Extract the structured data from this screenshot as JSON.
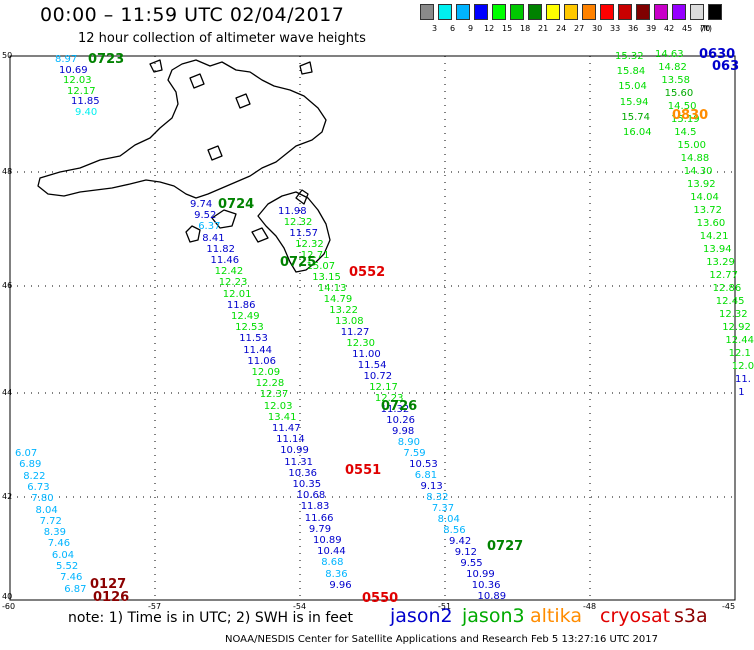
{
  "header": {
    "title": "00:00 – 11:59 UTC 02/04/2017",
    "subtitle": "12 hour collection of altimeter wave heights"
  },
  "legend": {
    "unit": "(ft)",
    "colors": [
      "#8a8a8a",
      "#00f0f0",
      "#00b4ff",
      "#0000ff",
      "#00ff00",
      "#00c800",
      "#008200",
      "#ffff00",
      "#ffc800",
      "#ff8200",
      "#ff0000",
      "#c80000",
      "#800000",
      "#c800c8",
      "#9600ff",
      "#dcdcdc",
      "#000000"
    ],
    "labels": [
      "3",
      "6",
      "9",
      "12",
      "15",
      "18",
      "21",
      "24",
      "27",
      "30",
      "33",
      "36",
      "39",
      "42",
      "45",
      "70"
    ]
  },
  "axes": {
    "lat_labels": [
      "50",
      "48",
      "46",
      "44",
      "42",
      "40"
    ],
    "lon_labels": [
      "-60",
      "-57",
      "-54",
      "-51",
      "-48",
      "-45"
    ]
  },
  "satellites": [
    {
      "name": "jason2",
      "color": "#0000cc"
    },
    {
      "name": "jason3",
      "color": "#00aa00"
    },
    {
      "name": "altika",
      "color": "#ff8c00"
    },
    {
      "name": "cryosat",
      "color": "#e00000"
    },
    {
      "name": "s3a",
      "color": "#8b0000"
    }
  ],
  "footer": {
    "note": "note:  1) Time is in UTC;  2) SWH is in feet",
    "credit": "NOAA/NESDIS Center for Satellite Applications and Research    Feb  5 13:27:16 UTC 2017"
  },
  "time_labels": [
    {
      "text": "0723",
      "color": "#008200"
    },
    {
      "text": "0724",
      "color": "#008200"
    },
    {
      "text": "0725",
      "color": "#008200"
    },
    {
      "text": "0552",
      "color": "#e00000"
    },
    {
      "text": "0726",
      "color": "#008200"
    },
    {
      "text": "0551",
      "color": "#e00000"
    },
    {
      "text": "0727",
      "color": "#008200"
    },
    {
      "text": "0550",
      "color": "#e00000"
    },
    {
      "text": "0127",
      "color": "#8b0000"
    },
    {
      "text": "0126",
      "color": "#8b0000"
    },
    {
      "text": "0630",
      "color": "#0000cc"
    },
    {
      "text": "063",
      "color": "#0000cc"
    },
    {
      "text": "0830",
      "color": "#ff8c00"
    }
  ],
  "tracks": [
    {
      "name": "track-a",
      "values": [
        "8.97",
        "10.69",
        "12.03",
        "12.17",
        "11.85",
        "9.40"
      ],
      "colors": [
        "#00b4ff",
        "#0000cc",
        "#00dd00",
        "#00dd00",
        "#0000cc",
        "#00f0f0"
      ]
    },
    {
      "name": "track-b",
      "values": [
        "9.74",
        "9.52",
        "6.37",
        "8.41",
        "11.82",
        "11.46",
        "12.42",
        "12.23",
        "12.01",
        "11.86",
        "12.49",
        "12.53",
        "11.53",
        "11.44",
        "11.06",
        "12.09",
        "12.28",
        "12.37",
        "12.03",
        "13.41",
        "11.47",
        "11.14",
        "10.99",
        "11.31",
        "10.36",
        "10.35",
        "10.68",
        "11.83",
        "11.66",
        "9.79",
        "10.89",
        "10.44",
        "8.68",
        "8.36",
        "9.96"
      ],
      "colors": [
        "#0000cc",
        "#0000cc",
        "#00b4ff",
        "#0000cc",
        "#0000cc",
        "#0000cc",
        "#00dd00",
        "#00dd00",
        "#00dd00",
        "#0000cc",
        "#00dd00",
        "#00dd00",
        "#0000cc",
        "#0000cc",
        "#0000cc",
        "#00dd00",
        "#00dd00",
        "#00dd00",
        "#00dd00",
        "#00dd00",
        "#0000cc",
        "#0000cc",
        "#0000cc",
        "#0000cc",
        "#0000cc",
        "#0000cc",
        "#0000cc",
        "#0000cc",
        "#0000cc",
        "#0000cc",
        "#0000cc",
        "#0000cc",
        "#00b4ff",
        "#00b4ff",
        "#0000cc"
      ]
    },
    {
      "name": "track-c",
      "values": [
        "11.98",
        "12.32",
        "11.57",
        "12.32",
        "12.71",
        "15.07",
        "13.15",
        "14.13",
        "14.79",
        "13.22",
        "13.08",
        "11.27",
        "12.30",
        "11.00",
        "11.54",
        "10.72",
        "12.17",
        "12.23",
        "11.32",
        "10.26",
        "9.98",
        "8.90",
        "7.59",
        "10.53",
        "6.81",
        "9.13",
        "8.32",
        "7.37",
        "8.04",
        "8.56",
        "9.42",
        "9.12",
        "9.55",
        "10.99",
        "10.36",
        "10.89"
      ],
      "colors": [
        "#0000cc",
        "#00dd00",
        "#0000cc",
        "#00dd00",
        "#00dd00",
        "#00dd00",
        "#00dd00",
        "#00dd00",
        "#00dd00",
        "#00dd00",
        "#00dd00",
        "#0000cc",
        "#00dd00",
        "#0000cc",
        "#0000cc",
        "#0000cc",
        "#00dd00",
        "#00dd00",
        "#0000cc",
        "#0000cc",
        "#0000cc",
        "#00b4ff",
        "#00b4ff",
        "#0000cc",
        "#00b4ff",
        "#0000cc",
        "#00b4ff",
        "#00b4ff",
        "#00b4ff",
        "#00b4ff",
        "#0000cc",
        "#0000cc",
        "#0000cc",
        "#0000cc",
        "#0000cc",
        "#0000cc"
      ]
    },
    {
      "name": "track-d",
      "values": [
        "6.07",
        "6.89",
        "8.22",
        "6.73",
        "7.80",
        "8.04",
        "7.72",
        "8.39",
        "7.46",
        "6.04",
        "5.52",
        "7.46",
        "6.87"
      ],
      "colors": [
        "#00b4ff",
        "#00b4ff",
        "#00b4ff",
        "#00b4ff",
        "#00b4ff",
        "#00b4ff",
        "#00b4ff",
        "#00b4ff",
        "#00b4ff",
        "#00b4ff",
        "#00b4ff",
        "#00b4ff",
        "#00b4ff"
      ]
    },
    {
      "name": "track-e",
      "values": [
        "15.32",
        "15.84",
        "15.04",
        "15.94",
        "15.74",
        "16.04"
      ],
      "colors": [
        "#00dd00",
        "#00dd00",
        "#00dd00",
        "#00dd00",
        "#00aa00",
        "#00dd00"
      ]
    },
    {
      "name": "track-f",
      "values": [
        "14.63",
        "14.82",
        "13.58",
        "15.60",
        "14.50",
        "15.19",
        "14.5",
        "15.00",
        "14.88",
        "14.30",
        "13.92",
        "14.04",
        "13.72",
        "13.60",
        "14.21",
        "13.94",
        "13.29",
        "12.77",
        "12.86",
        "12.45",
        "12.32",
        "12.92",
        "12.44",
        "12.1",
        "12.0",
        "11.",
        "1"
      ],
      "colors": [
        "#00dd00",
        "#00dd00",
        "#00dd00",
        "#00aa00",
        "#00dd00",
        "#00dd00",
        "#00dd00",
        "#00dd00",
        "#00dd00",
        "#00dd00",
        "#00dd00",
        "#00dd00",
        "#00dd00",
        "#00dd00",
        "#00dd00",
        "#00dd00",
        "#00dd00",
        "#00dd00",
        "#00dd00",
        "#00dd00",
        "#00dd00",
        "#00dd00",
        "#00dd00",
        "#00dd00",
        "#00dd00",
        "#0000cc",
        "#0000cc"
      ]
    }
  ]
}
